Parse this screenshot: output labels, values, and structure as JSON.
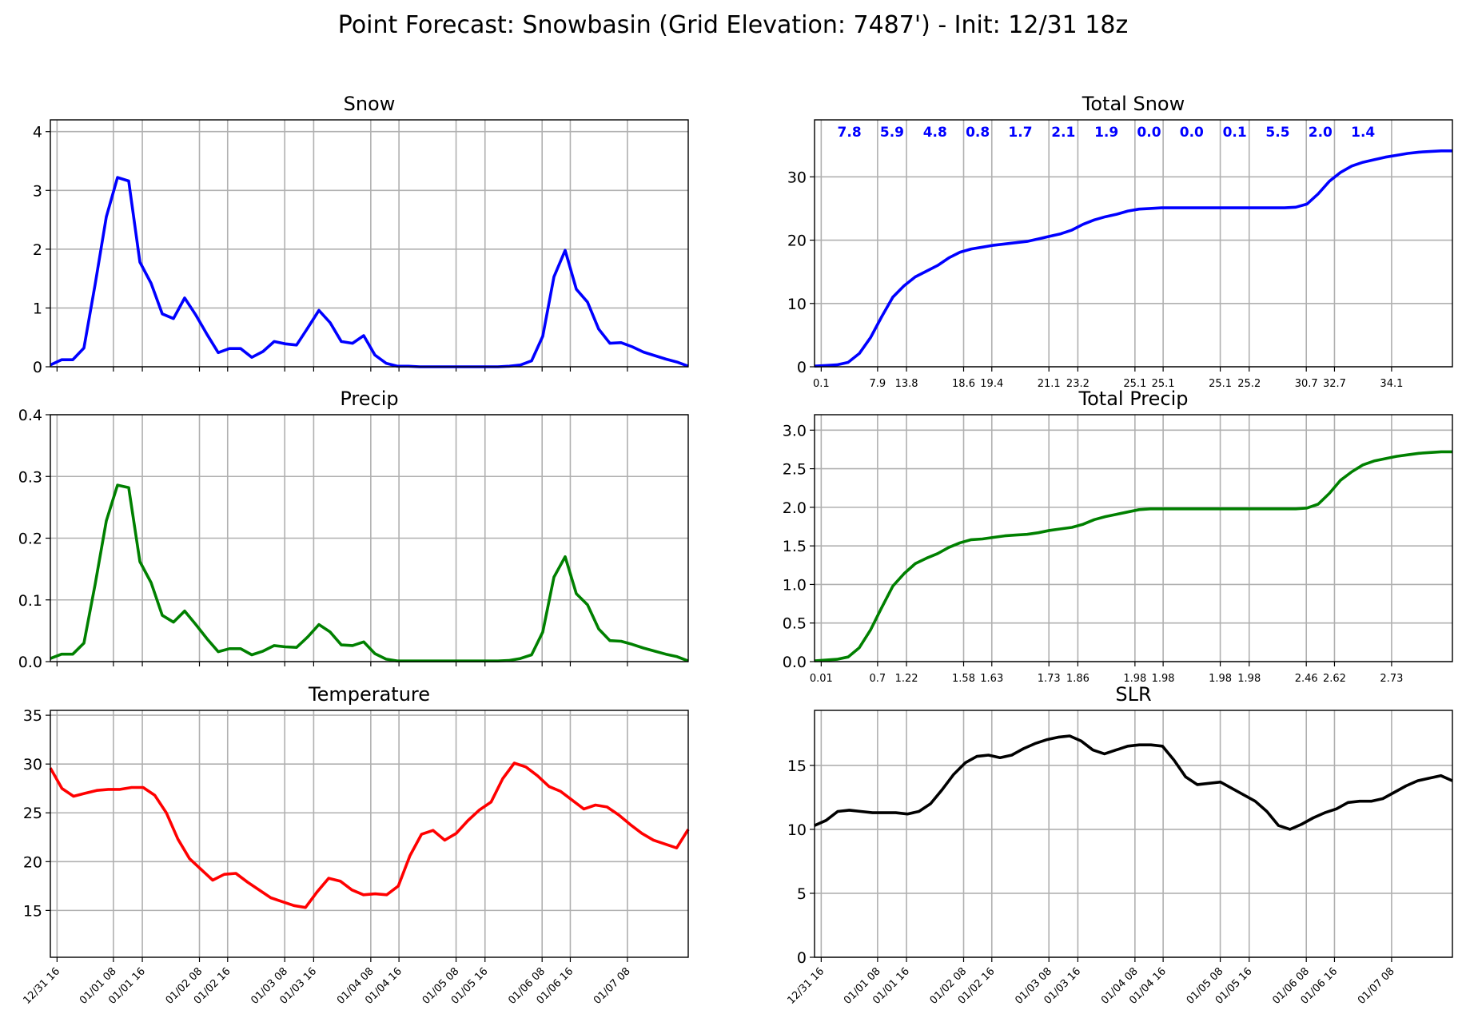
{
  "figure": {
    "title": "Point Forecast: Snowbasin (Grid Elevation: 7487') - Init: 12/31 18z"
  },
  "colors": {
    "snow": "#0000ff",
    "precip": "#008000",
    "temperature": "#ff0000",
    "slr": "#000000",
    "grid": "#b0b0b0",
    "annotation": "#0000ff"
  },
  "time_ticks": [
    "12/31 16",
    "01/01 08",
    "01/01 16",
    "01/02 08",
    "01/02 16",
    "01/03 08",
    "01/03 16",
    "01/04 08",
    "01/04 16",
    "01/05 08",
    "01/05 16",
    "01/06 08",
    "01/06 16",
    "01/07 08"
  ],
  "chart_data": [
    {
      "id": "snow",
      "type": "line",
      "title": "Snow",
      "color": "#0000ff",
      "ylim": [
        0,
        4.2
      ],
      "yticks": [
        0,
        1,
        2,
        3,
        4
      ],
      "grid": true,
      "x_start": "12/31 18z",
      "x_step_hours": 3,
      "values": [
        0.03,
        0.12,
        0.12,
        0.32,
        1.4,
        2.55,
        3.22,
        3.16,
        1.78,
        1.42,
        0.9,
        0.82,
        1.17,
        0.88,
        0.55,
        0.24,
        0.31,
        0.31,
        0.16,
        0.26,
        0.43,
        0.39,
        0.37,
        0.66,
        0.96,
        0.75,
        0.43,
        0.4,
        0.53,
        0.2,
        0.06,
        0.01,
        0.01,
        0.0,
        0.0,
        0.0,
        0.0,
        0.0,
        0.0,
        0.0,
        0.0,
        0.01,
        0.03,
        0.1,
        0.52,
        1.53,
        1.98,
        1.32,
        1.1,
        0.64,
        0.4,
        0.41,
        0.34,
        0.25,
        0.19,
        0.13,
        0.08,
        0.01
      ]
    },
    {
      "id": "total_snow",
      "type": "line",
      "title": "Total Snow",
      "color": "#0000ff",
      "ylim": [
        0,
        39
      ],
      "yticks": [
        0,
        10,
        20,
        30
      ],
      "grid": true,
      "x_start": "12/31 18z",
      "x_step_hours": 3,
      "values": [
        0.1,
        0.2,
        0.3,
        0.7,
        2.1,
        4.6,
        7.9,
        11.0,
        12.8,
        14.2,
        15.1,
        16.0,
        17.2,
        18.1,
        18.6,
        18.9,
        19.2,
        19.4,
        19.6,
        19.8,
        20.2,
        20.6,
        21.0,
        21.6,
        22.5,
        23.2,
        23.7,
        24.1,
        24.6,
        24.9,
        25.0,
        25.1,
        25.1,
        25.1,
        25.1,
        25.1,
        25.1,
        25.1,
        25.1,
        25.1,
        25.1,
        25.1,
        25.1,
        25.2,
        25.7,
        27.3,
        29.3,
        30.7,
        31.7,
        32.3,
        32.7,
        33.1,
        33.4,
        33.7,
        33.9,
        34.0,
        34.1,
        34.1
      ],
      "bottom_labels": [
        "0.1",
        "7.9",
        "13.8",
        "18.6",
        "19.4",
        "21.1",
        "23.2",
        "25.1",
        "25.1",
        "25.1",
        "25.2",
        "30.7",
        "32.7",
        "34.1"
      ],
      "period_totals": [
        "7.8",
        "5.9",
        "4.8",
        "0.8",
        "1.7",
        "2.1",
        "1.9",
        "0.0",
        "0.0",
        "0.1",
        "5.5",
        "2.0",
        "1.4"
      ]
    },
    {
      "id": "precip",
      "type": "line",
      "title": "Precip",
      "color": "#008000",
      "ylim": [
        0,
        0.4
      ],
      "yticks": [
        0.0,
        0.1,
        0.2,
        0.3,
        0.4
      ],
      "grid": true,
      "x_start": "12/31 18z",
      "x_step_hours": 3,
      "values": [
        0.005,
        0.012,
        0.012,
        0.03,
        0.125,
        0.228,
        0.286,
        0.282,
        0.162,
        0.128,
        0.075,
        0.064,
        0.082,
        0.06,
        0.037,
        0.016,
        0.021,
        0.021,
        0.011,
        0.017,
        0.026,
        0.024,
        0.023,
        0.04,
        0.06,
        0.048,
        0.027,
        0.026,
        0.032,
        0.013,
        0.004,
        0.001,
        0.001,
        0.001,
        0.001,
        0.001,
        0.001,
        0.001,
        0.001,
        0.001,
        0.001,
        0.002,
        0.005,
        0.011,
        0.048,
        0.137,
        0.17,
        0.11,
        0.092,
        0.053,
        0.034,
        0.033,
        0.028,
        0.022,
        0.017,
        0.012,
        0.008,
        0.001
      ]
    },
    {
      "id": "total_precip",
      "type": "line",
      "title": "Total Precip",
      "color": "#008000",
      "ylim": [
        0,
        3.2
      ],
      "yticks": [
        0.0,
        0.5,
        1.0,
        1.5,
        2.0,
        2.5,
        3.0
      ],
      "grid": true,
      "x_start": "12/31 18z",
      "x_step_hours": 3,
      "values": [
        0.01,
        0.02,
        0.03,
        0.06,
        0.18,
        0.41,
        0.7,
        0.98,
        1.14,
        1.27,
        1.34,
        1.4,
        1.48,
        1.54,
        1.58,
        1.59,
        1.61,
        1.63,
        1.64,
        1.65,
        1.67,
        1.7,
        1.72,
        1.74,
        1.78,
        1.84,
        1.88,
        1.91,
        1.94,
        1.97,
        1.98,
        1.98,
        1.98,
        1.98,
        1.98,
        1.98,
        1.98,
        1.98,
        1.98,
        1.98,
        1.98,
        1.98,
        1.98,
        1.98,
        1.99,
        2.04,
        2.18,
        2.35,
        2.46,
        2.55,
        2.6,
        2.63,
        2.66,
        2.68,
        2.7,
        2.71,
        2.72,
        2.72
      ],
      "bottom_labels": [
        "0.01",
        "0.7",
        "1.22",
        "1.58",
        "1.63",
        "1.73",
        "1.86",
        "1.98",
        "1.98",
        "1.98",
        "1.98",
        "2.46",
        "2.62",
        "2.73"
      ]
    },
    {
      "id": "temperature",
      "type": "line",
      "title": "Temperature",
      "color": "#ff0000",
      "ylim": [
        10.2,
        35.5
      ],
      "yticks": [
        15,
        20,
        25,
        30,
        35
      ],
      "grid": true,
      "x_start": "12/31 18z",
      "x_step_hours": 3,
      "values": [
        29.6,
        27.5,
        26.7,
        27.0,
        27.3,
        27.4,
        27.4,
        27.6,
        27.6,
        26.8,
        25.0,
        22.3,
        20.3,
        19.2,
        18.1,
        18.7,
        18.8,
        17.9,
        17.1,
        16.3,
        15.9,
        15.5,
        15.3,
        16.9,
        18.3,
        18.0,
        17.1,
        16.6,
        16.7,
        16.6,
        17.5,
        20.6,
        22.8,
        23.2,
        22.2,
        22.9,
        24.2,
        25.3,
        26.1,
        28.5,
        30.1,
        29.7,
        28.8,
        27.7,
        27.2,
        26.3,
        25.4,
        25.8,
        25.6,
        24.8,
        23.8,
        22.9,
        22.2,
        21.8,
        21.4,
        23.3
      ]
    },
    {
      "id": "slr",
      "type": "line",
      "title": "SLR",
      "color": "#000000",
      "ylim": [
        0,
        19.3
      ],
      "yticks": [
        0,
        5,
        10,
        15
      ],
      "grid": true,
      "x_start": "12/31 18z",
      "x_step_hours": 3,
      "values": [
        10.3,
        10.7,
        11.4,
        11.5,
        11.4,
        11.3,
        11.3,
        11.3,
        11.2,
        11.4,
        12.0,
        13.1,
        14.3,
        15.2,
        15.7,
        15.8,
        15.6,
        15.8,
        16.3,
        16.7,
        17.0,
        17.2,
        17.3,
        16.9,
        16.2,
        15.9,
        16.2,
        16.5,
        16.6,
        16.6,
        16.5,
        15.4,
        14.1,
        13.5,
        13.6,
        13.7,
        13.2,
        12.7,
        12.2,
        11.4,
        10.3,
        10.0,
        10.4,
        10.9,
        11.3,
        11.6,
        12.1,
        12.2,
        12.2,
        12.4,
        12.9,
        13.4,
        13.8,
        14.0,
        14.2,
        13.8
      ]
    }
  ]
}
